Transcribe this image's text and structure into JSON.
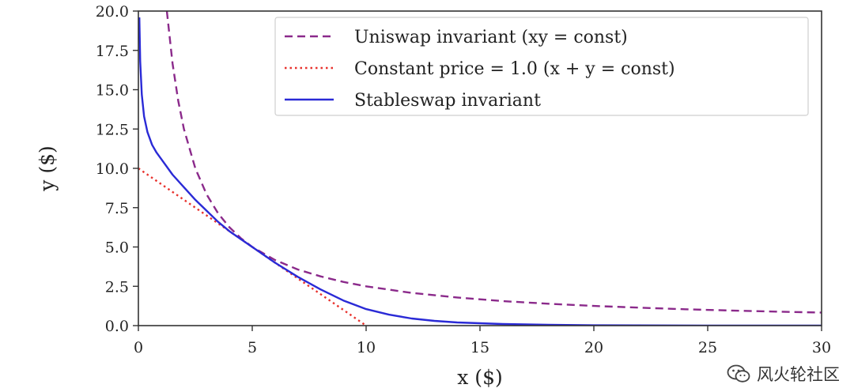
{
  "chart_data": {
    "type": "line",
    "xlabel": "x ($)",
    "ylabel": "y ($)",
    "xlim": [
      0,
      30
    ],
    "ylim": [
      0,
      20
    ],
    "xticks": [
      "0",
      "5",
      "10",
      "15",
      "20",
      "25",
      "30"
    ],
    "yticks": [
      "0.0",
      "2.5",
      "5.0",
      "7.5",
      "10.0",
      "12.5",
      "15.0",
      "17.5",
      "20.0"
    ],
    "grid": false,
    "legend_position": "top-right",
    "series": [
      {
        "name": "Uniswap invariant (xy = const)",
        "style": "dashed",
        "color": "#8b2a8b",
        "x": [
          1.25,
          1.5,
          1.75,
          2,
          2.5,
          3,
          3.5,
          4,
          4.5,
          5,
          6,
          7,
          8,
          9,
          10,
          12,
          14,
          16,
          18,
          20,
          22,
          24,
          26,
          28,
          30
        ],
        "y": [
          20.0,
          16.67,
          14.29,
          12.5,
          10.0,
          8.33,
          7.14,
          6.25,
          5.56,
          5.0,
          4.17,
          3.57,
          3.13,
          2.78,
          2.5,
          2.08,
          1.79,
          1.56,
          1.39,
          1.25,
          1.14,
          1.04,
          0.96,
          0.89,
          0.83
        ]
      },
      {
        "name": "Constant price = 1.0 (x + y = const)",
        "style": "dotted",
        "color": "#e8322d",
        "x": [
          0,
          10
        ],
        "y": [
          10,
          0
        ]
      },
      {
        "name": "Stableswap invariant",
        "style": "solid",
        "color": "#2a2ad6",
        "x": [
          0.04,
          0.08,
          0.15,
          0.25,
          0.4,
          0.6,
          0.8,
          1.0,
          1.5,
          2.0,
          2.5,
          3.0,
          3.5,
          4.0,
          4.5,
          5.0,
          6.0,
          7.0,
          8.0,
          9.0,
          10.0,
          11.0,
          12.0,
          13.0,
          14.0,
          16.0,
          18.0,
          20.0,
          25.0,
          30.0
        ],
        "y": [
          19.6,
          16.8,
          14.7,
          13.3,
          12.3,
          11.5,
          11.0,
          10.6,
          9.6,
          8.8,
          8.0,
          7.3,
          6.6,
          6.0,
          5.5,
          5.0,
          4.0,
          3.1,
          2.3,
          1.6,
          1.05,
          0.7,
          0.45,
          0.3,
          0.2,
          0.1,
          0.05,
          0.02,
          0.0,
          0.0
        ]
      }
    ]
  },
  "watermark": {
    "text": "风火轮社区",
    "icon": "wechat-icon"
  }
}
